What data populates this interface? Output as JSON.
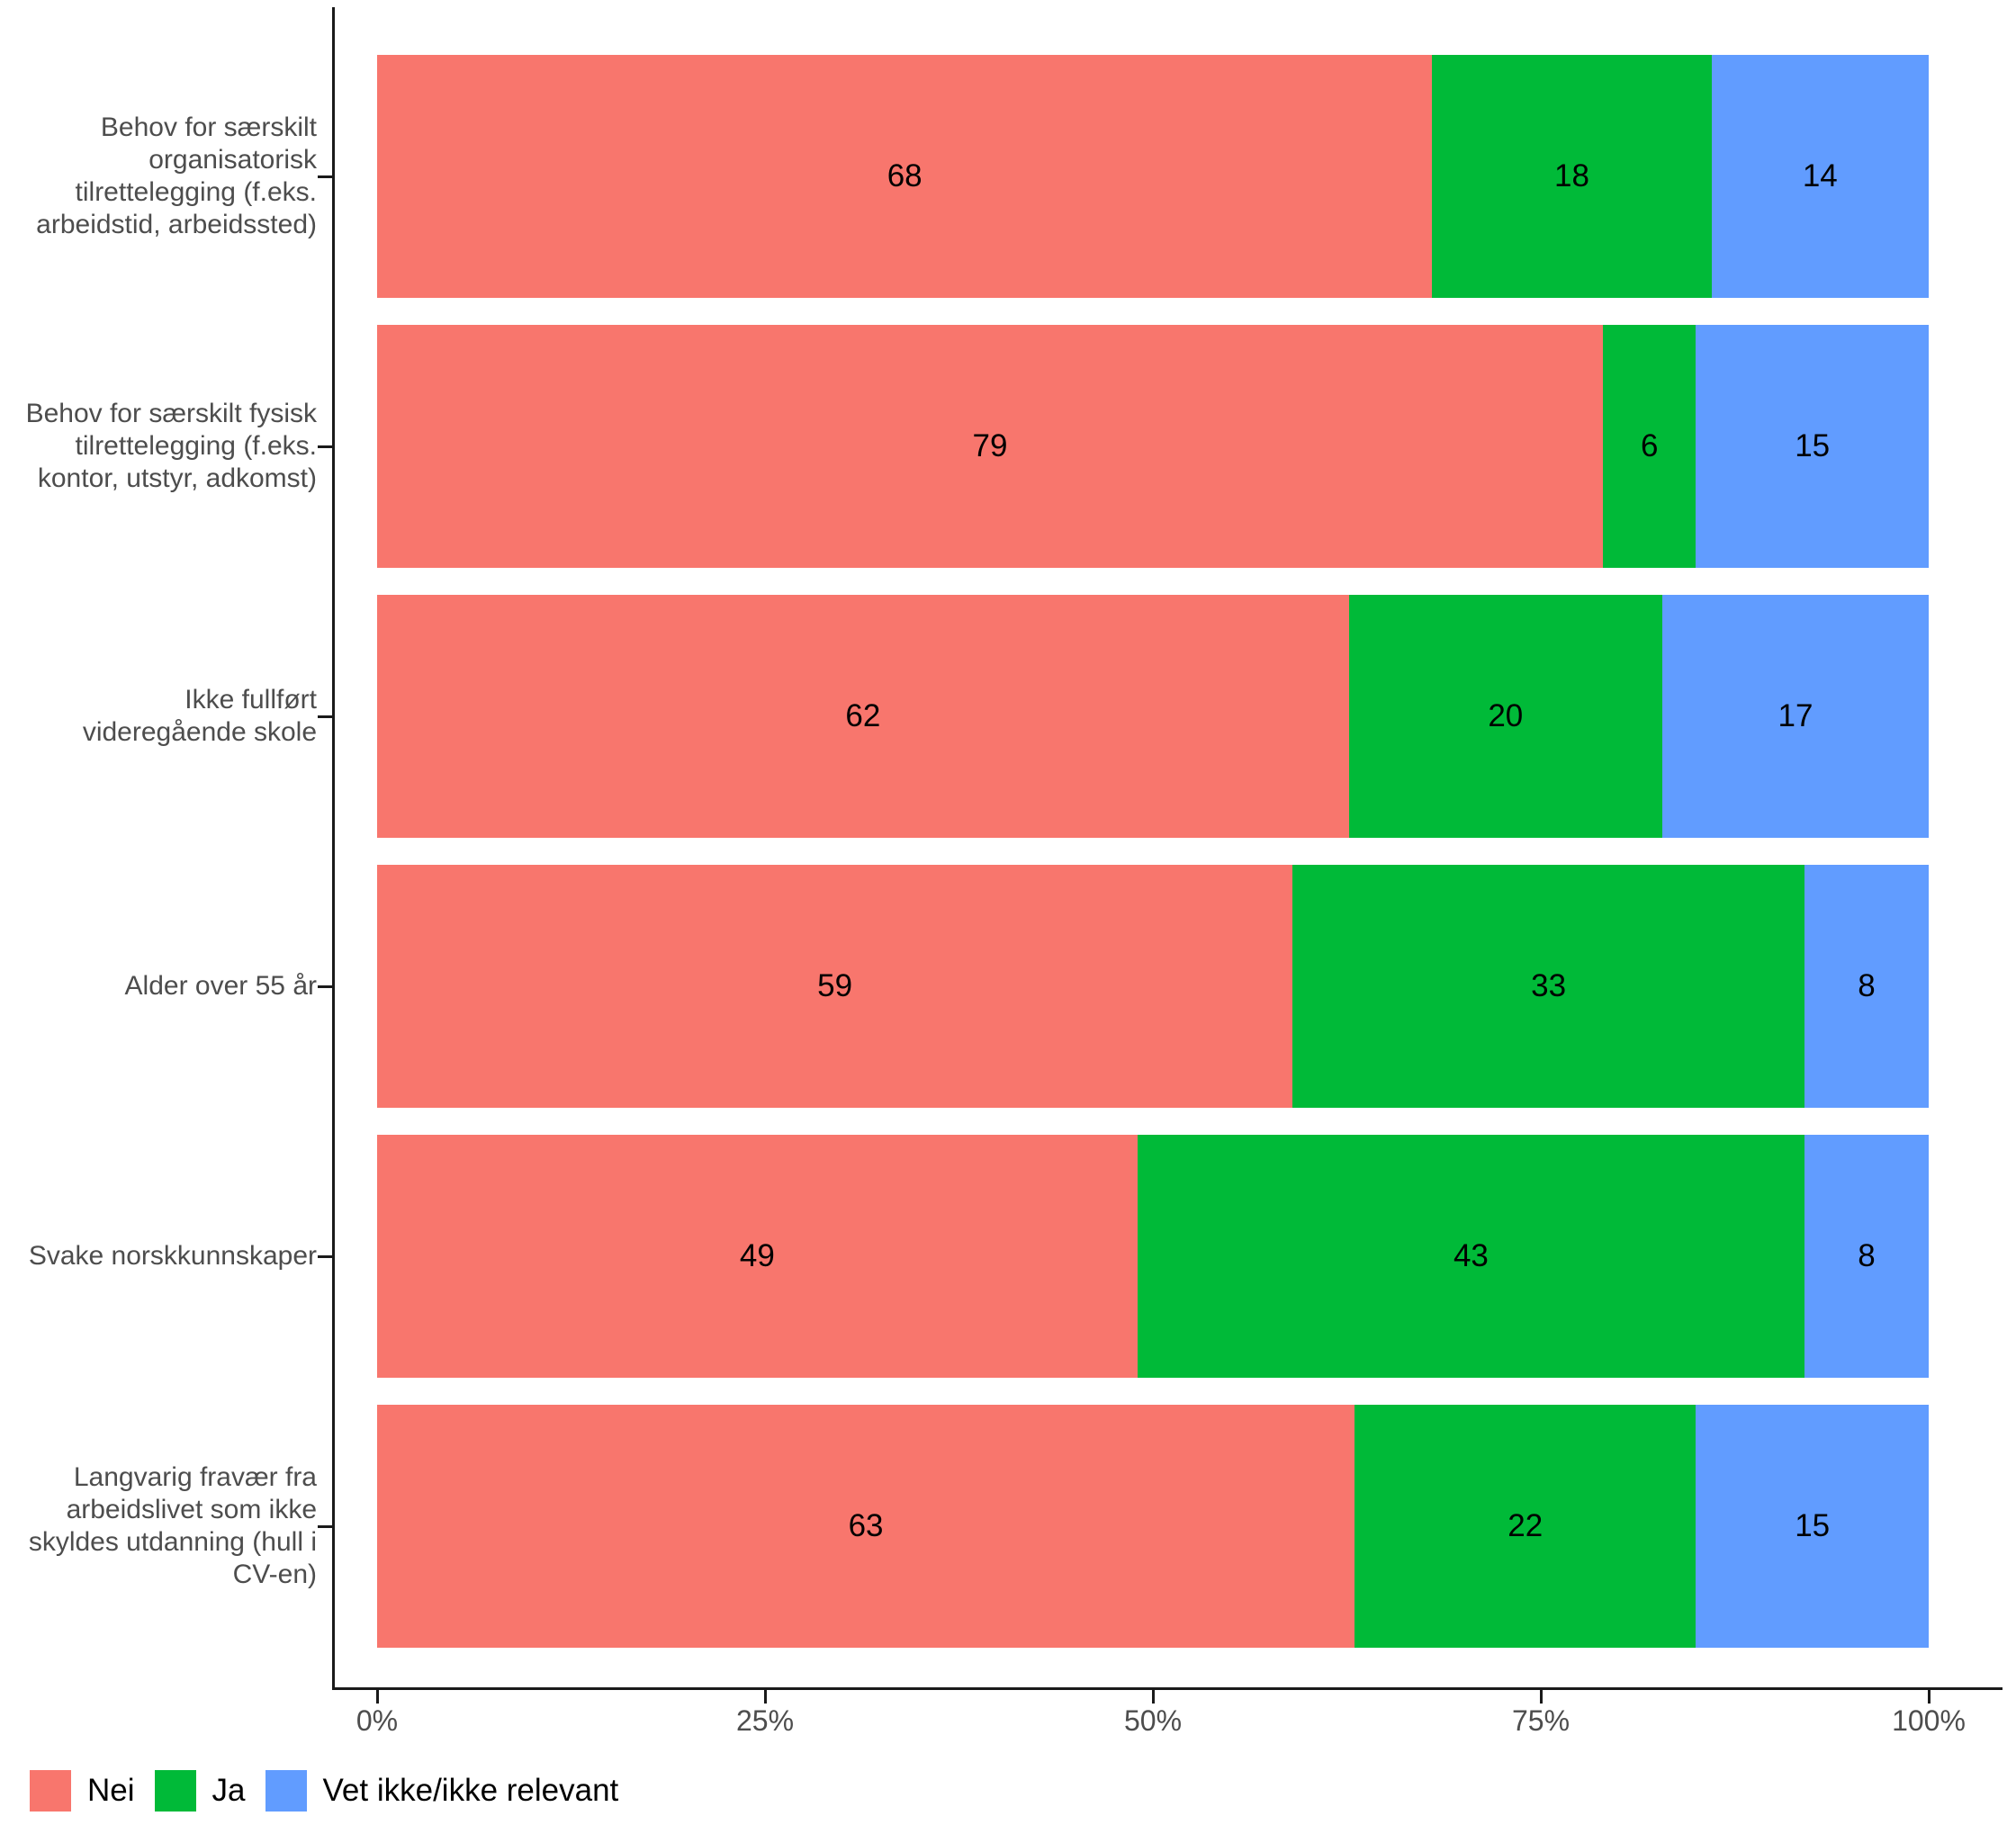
{
  "chart_data": {
    "type": "bar",
    "orientation": "horizontal",
    "stack_mode": "fill-percent",
    "title": "",
    "xlabel": "",
    "ylabel": "",
    "grid": false,
    "legend_position": "bottom",
    "x_range": [
      0,
      100
    ],
    "x_tick_labels": [
      "0%",
      "25%",
      "50%",
      "75%",
      "100%"
    ],
    "categories": [
      "Behov for særskilt organisatorisk tilrettelegging (f.eks. arbeidstid, arbeidssted)",
      "Behov for særskilt fysisk tilrettelegging (f.eks. kontor, utstyr, adkomst)",
      "Ikke fullført videregående skole",
      "Alder over 55 år",
      "Svake norskkunnskaper",
      "Langvarig fravær fra arbeidslivet som ikke skyldes utdanning (hull i CV-en)"
    ],
    "category_label_lines": [
      [
        "Behov for særskilt",
        "organisatorisk",
        "tilrettelegging (f.eks.",
        "arbeidstid, arbeidssted)"
      ],
      [
        "Behov for særskilt fysisk",
        "tilrettelegging (f.eks.",
        "kontor, utstyr, adkomst)"
      ],
      [
        "Ikke fullført",
        "videregående skole"
      ],
      [
        "Alder over 55 år"
      ],
      [
        "Svake norskkunnskaper"
      ],
      [
        "Langvarig fravær fra",
        "arbeidslivet som ikke",
        "skyldes utdanning (hull i",
        "CV-en)"
      ]
    ],
    "series": [
      {
        "name": "Nei",
        "color": "#F8766D",
        "values": [
          68,
          79,
          62,
          59,
          49,
          63
        ]
      },
      {
        "name": "Ja",
        "color": "#00BA38",
        "values": [
          18,
          6,
          20,
          33,
          43,
          22
        ]
      },
      {
        "name": "Vet ikke/ikke relevant",
        "color": "#619CFF",
        "values": [
          14,
          15,
          17,
          8,
          8,
          15
        ]
      }
    ],
    "axis_color": "#1A1A1A",
    "tick_text_color": "#4D4D4D",
    "value_label_color": "#000000"
  }
}
